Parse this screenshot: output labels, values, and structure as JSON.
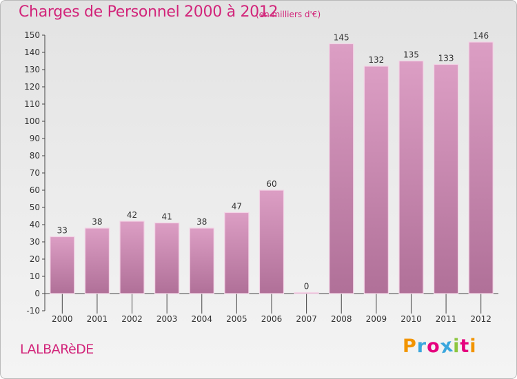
{
  "chart_data": {
    "type": "bar",
    "title": "Charges de Personnel 2000 à 2012",
    "subtitle": "(en milliers d'€)",
    "categories": [
      "2000",
      "2001",
      "2002",
      "2003",
      "2004",
      "2005",
      "2006",
      "2007",
      "2008",
      "2009",
      "2010",
      "2011",
      "2012"
    ],
    "values": [
      33,
      38,
      42,
      41,
      38,
      47,
      60,
      0,
      145,
      132,
      135,
      133,
      146
    ],
    "ylim": [
      -10,
      150
    ],
    "yticks": [
      -10,
      0,
      10,
      20,
      30,
      40,
      50,
      60,
      70,
      80,
      90,
      100,
      110,
      120,
      130,
      140,
      150
    ],
    "grid": false,
    "bar_color": "#dc9ec4",
    "bar_color_dark": "#b07098",
    "xlabel": "",
    "ylabel": ""
  },
  "commune": "LALBARèDE",
  "logo": {
    "letters": [
      "P",
      "r",
      "o",
      "x",
      "i",
      "t",
      "i"
    ],
    "colors": [
      "#f29400",
      "#3aa6dd",
      "#e5007e",
      "#3aa6dd",
      "#8cc63f",
      "#e5007e",
      "#f29400"
    ]
  }
}
